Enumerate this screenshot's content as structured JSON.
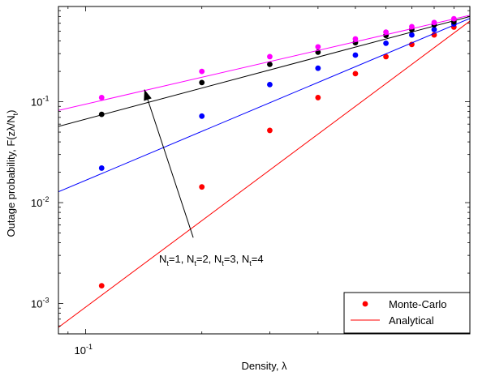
{
  "chart_data": {
    "type": "line",
    "title": "",
    "xlabel": "Density, λ",
    "ylabel": "Outage probability, F(zλ/N",
    "ylabel_sub": "t",
    "ylabel_close": ")",
    "xscale": "log",
    "yscale": "log",
    "xlim": [
      0.085,
      0.99
    ],
    "ylim": [
      0.0005,
      0.88
    ],
    "grid": false,
    "xticks": [
      {
        "value": 0.1,
        "base": "10",
        "exp": "-1"
      }
    ],
    "yticks": [
      {
        "value": 0.001,
        "base": "10",
        "exp": "-3"
      },
      {
        "value": 0.01,
        "base": "10",
        "exp": "-2"
      },
      {
        "value": 0.1,
        "base": "10",
        "exp": "-1"
      }
    ],
    "series": [
      {
        "color": "#ff0000",
        "analytical": {
          "x": [
            0.085,
            0.99
          ],
          "y": [
            0.00058,
            0.63
          ]
        },
        "monte_carlo": {
          "x": [
            0.11,
            0.2,
            0.3,
            0.4,
            0.5,
            0.6,
            0.7,
            0.8,
            0.9
          ],
          "y": [
            0.0015,
            0.0143,
            0.052,
            0.11,
            0.19,
            0.28,
            0.37,
            0.46,
            0.55
          ]
        }
      },
      {
        "color": "#0000ff",
        "analytical": {
          "x": [
            0.085,
            0.99
          ],
          "y": [
            0.0128,
            0.67
          ]
        },
        "monte_carlo": {
          "x": [
            0.11,
            0.2,
            0.3,
            0.4,
            0.5,
            0.6,
            0.7,
            0.8,
            0.9
          ],
          "y": [
            0.022,
            0.072,
            0.148,
            0.215,
            0.29,
            0.38,
            0.46,
            0.52,
            0.59
          ]
        }
      },
      {
        "color": "#000000",
        "analytical": {
          "x": [
            0.085,
            0.99
          ],
          "y": [
            0.057,
            0.7
          ]
        },
        "monte_carlo": {
          "x": [
            0.11,
            0.2,
            0.3,
            0.4,
            0.5,
            0.6,
            0.7,
            0.8,
            0.9
          ],
          "y": [
            0.075,
            0.155,
            0.235,
            0.31,
            0.385,
            0.455,
            0.52,
            0.58,
            0.62
          ]
        }
      },
      {
        "color": "#ff00ff",
        "analytical": {
          "x": [
            0.085,
            0.99
          ],
          "y": [
            0.082,
            0.72
          ]
        },
        "monte_carlo": {
          "x": [
            0.11,
            0.2,
            0.3,
            0.4,
            0.5,
            0.6,
            0.7,
            0.8,
            0.9
          ],
          "y": [
            0.11,
            0.2,
            0.28,
            0.35,
            0.42,
            0.49,
            0.555,
            0.61,
            0.665
          ]
        }
      }
    ],
    "annotation": {
      "text_parts": [
        {
          "t": "N"
        },
        {
          "t": "t",
          "sub": true
        },
        {
          "t": "=1, N"
        },
        {
          "t": "t",
          "sub": true
        },
        {
          "t": "=2, N"
        },
        {
          "t": "t",
          "sub": true
        },
        {
          "t": "=3, N"
        },
        {
          "t": "t",
          "sub": true
        },
        {
          "t": "=4"
        }
      ],
      "arrow_from": {
        "x": 0.19,
        "y": 0.0045
      },
      "arrow_to": {
        "x": 0.142,
        "y": 0.132
      }
    },
    "legend": {
      "position": "bottom-right",
      "entries": [
        {
          "label": "Monte-Carlo",
          "marker": "dot",
          "color": "#ff0000"
        },
        {
          "label": "Analytical",
          "marker": "line",
          "color": "#ff0000"
        }
      ]
    }
  }
}
